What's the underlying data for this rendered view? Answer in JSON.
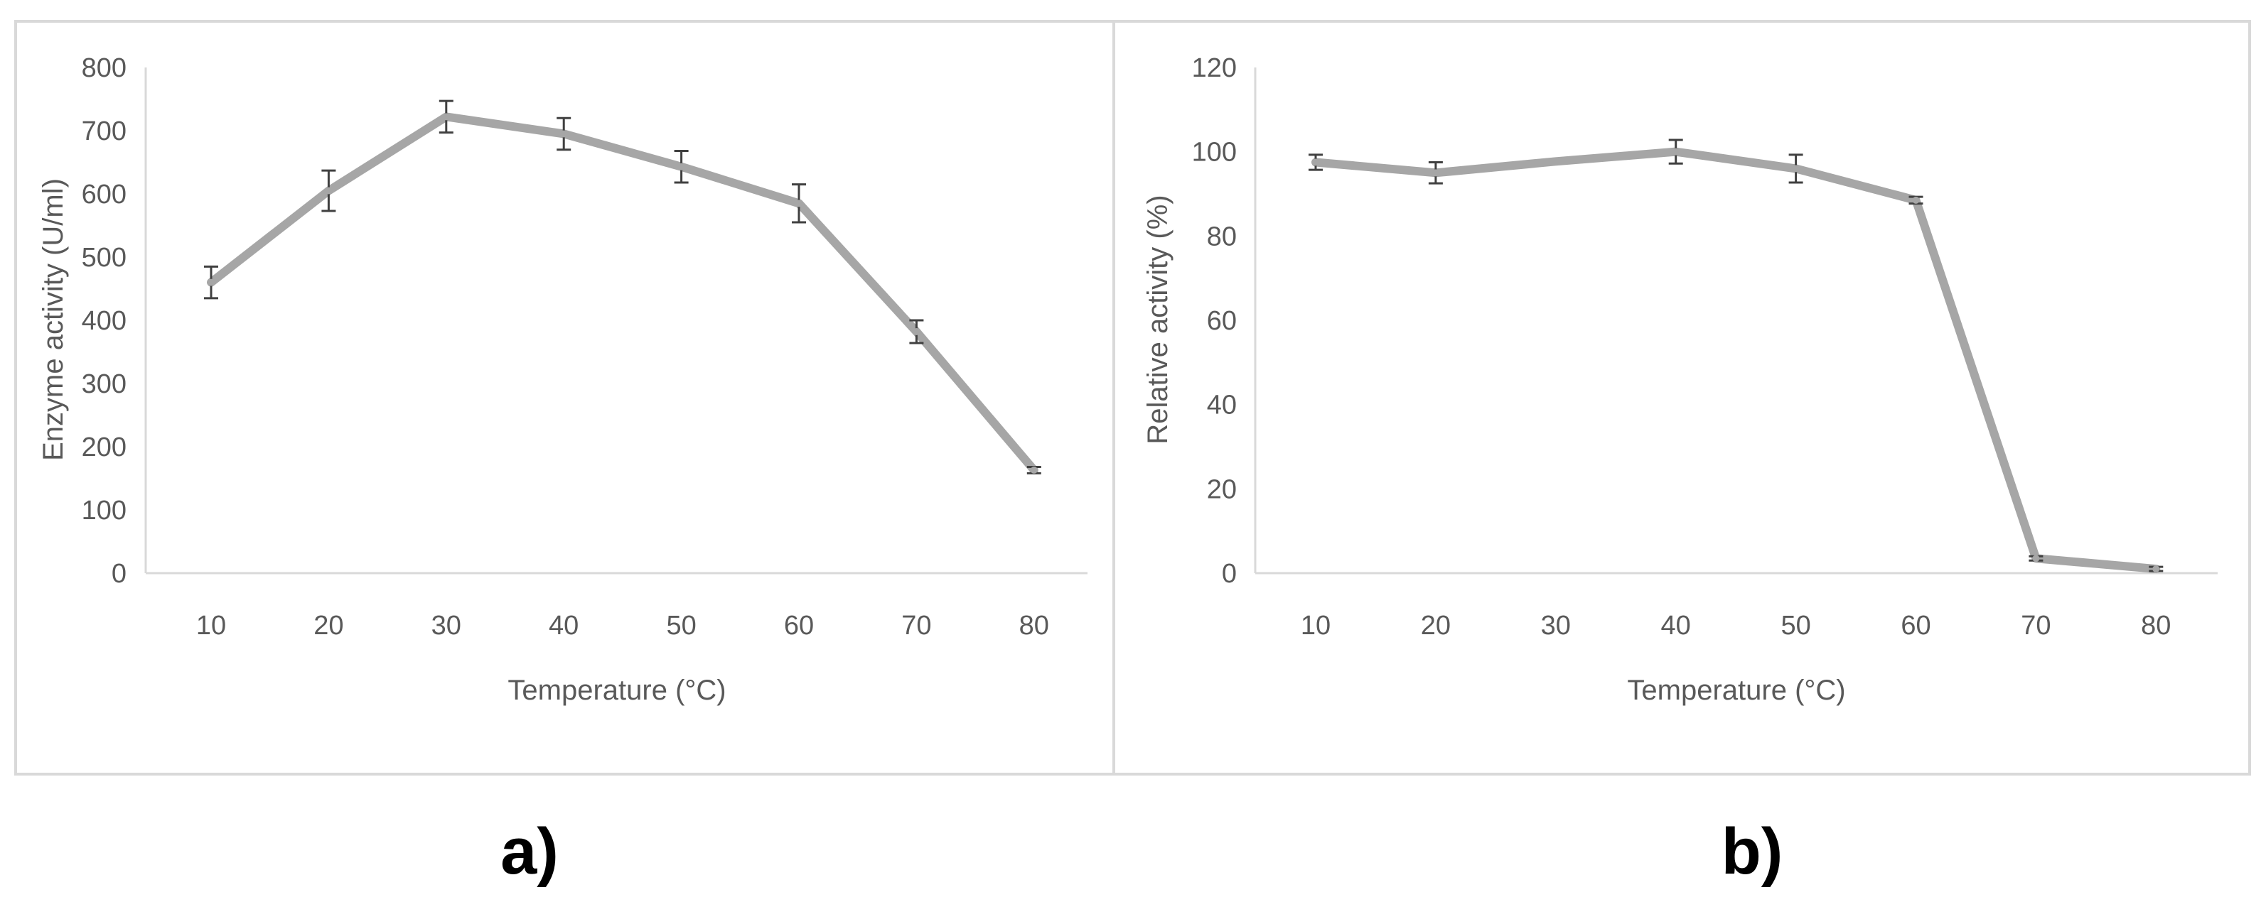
{
  "figure": {
    "panel_labels": [
      "a)",
      "b)"
    ]
  },
  "style": {
    "line_color": "#a6a6a6",
    "error_bar_color": "#404040",
    "axis_color": "#d9d9d9",
    "frame_color": "#d9d9d9",
    "text_color": "#595959"
  },
  "chart_data": [
    {
      "type": "line",
      "panel": "a)",
      "title": "",
      "xlabel": "Temperature (°C)",
      "ylabel": "Enzyme activity (U/ml)",
      "categories": [
        "10",
        "20",
        "30",
        "40",
        "50",
        "60",
        "70",
        "80"
      ],
      "values": [
        460,
        605,
        722,
        695,
        643,
        585,
        382,
        163
      ],
      "errors": [
        25,
        32,
        25,
        25,
        25,
        30,
        18,
        5
      ],
      "ylim": [
        0,
        800
      ],
      "yticks": [
        0,
        100,
        200,
        300,
        400,
        500,
        600,
        700,
        800
      ],
      "grid": false,
      "legend": "none"
    },
    {
      "type": "line",
      "panel": "b)",
      "title": "",
      "xlabel": "Temperature (°C)",
      "ylabel": "Relative activity (%)",
      "categories": [
        "10",
        "20",
        "30",
        "40",
        "50",
        "60",
        "70",
        "80"
      ],
      "values": [
        97.5,
        95,
        97.7,
        100,
        96,
        88.5,
        3.5,
        1
      ],
      "errors": [
        1.8,
        2.5,
        0,
        2.8,
        3.3,
        0.8,
        0.5,
        0.5
      ],
      "ylim": [
        0,
        120
      ],
      "yticks": [
        0,
        20,
        40,
        60,
        80,
        100,
        120
      ],
      "grid": false,
      "legend": "none"
    }
  ]
}
